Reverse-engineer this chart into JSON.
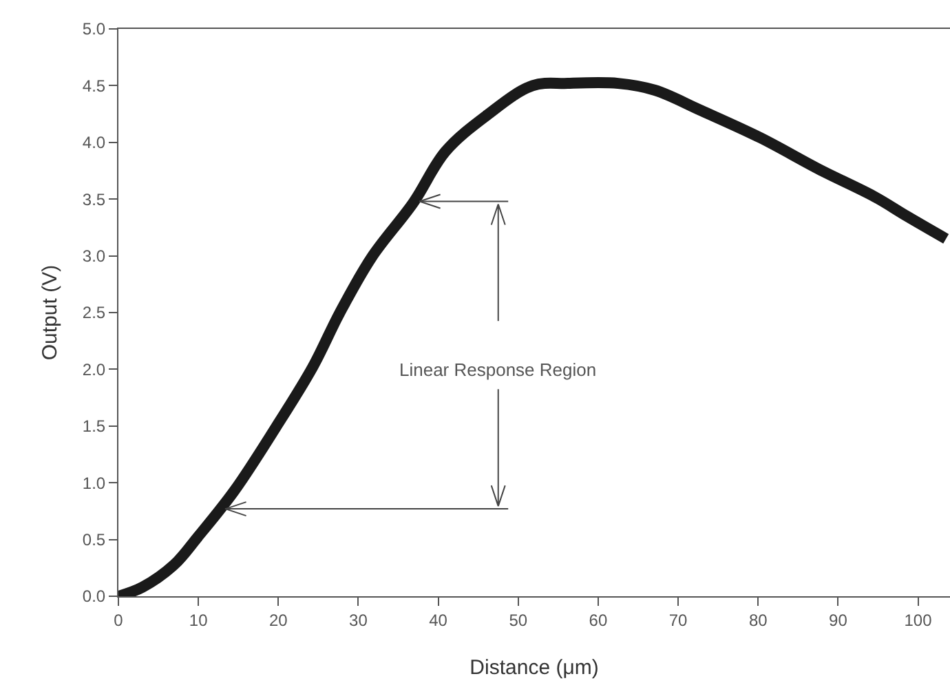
{
  "chart_data": {
    "type": "line",
    "xlabel": "Distance (μm)",
    "ylabel": "Output (V)",
    "x": [
      0,
      3,
      7,
      9.9,
      14.5,
      19.7,
      24.3,
      27.7,
      31.7,
      36.9,
      40.9,
      46.1,
      51.8,
      56.2,
      62.5,
      67.1,
      72.9,
      80.3,
      87.7,
      94.6,
      98.6,
      103.5
    ],
    "series": [
      {
        "color": "#1a1a1a",
        "values": [
          0,
          0.08,
          0.28,
          0.52,
          0.93,
          1.49,
          2.02,
          2.5,
          2.99,
          3.47,
          3.92,
          4.24,
          4.5,
          4.52,
          4.52,
          4.46,
          4.28,
          4.04,
          3.76,
          3.52,
          3.35,
          3.15
        ]
      }
    ],
    "xlim": [
      0,
      104
    ],
    "xticks": [
      0,
      10,
      20,
      30,
      40,
      50,
      60,
      70,
      80,
      90,
      100
    ],
    "ylim": [
      0,
      5
    ],
    "yticks": [
      {
        "value": 0,
        "label": "0.0"
      },
      {
        "value": 0.5,
        "label": "0.5"
      },
      {
        "value": 1,
        "label": "1.0"
      },
      {
        "value": 1.5,
        "label": "1.5"
      },
      {
        "value": 2,
        "label": "2.0"
      },
      {
        "value": 2.5,
        "label": "2.5"
      },
      {
        "value": 3,
        "label": "3.0"
      },
      {
        "value": 3.5,
        "label": "3.5"
      },
      {
        "value": 4,
        "label": "4.0"
      },
      {
        "value": 4.5,
        "label": "4.5"
      },
      {
        "value": 5,
        "label": "5.0"
      }
    ],
    "ref_lines": [
      {
        "axis": "y",
        "value": 0.77
      },
      {
        "axis": "y",
        "value": 3.48
      }
    ],
    "annotations": [
      {
        "text": "Linear Response Region",
        "x": 47.5,
        "y": 0.77
      }
    ],
    "grid": false,
    "marker": "none",
    "line_style": "solid"
  }
}
